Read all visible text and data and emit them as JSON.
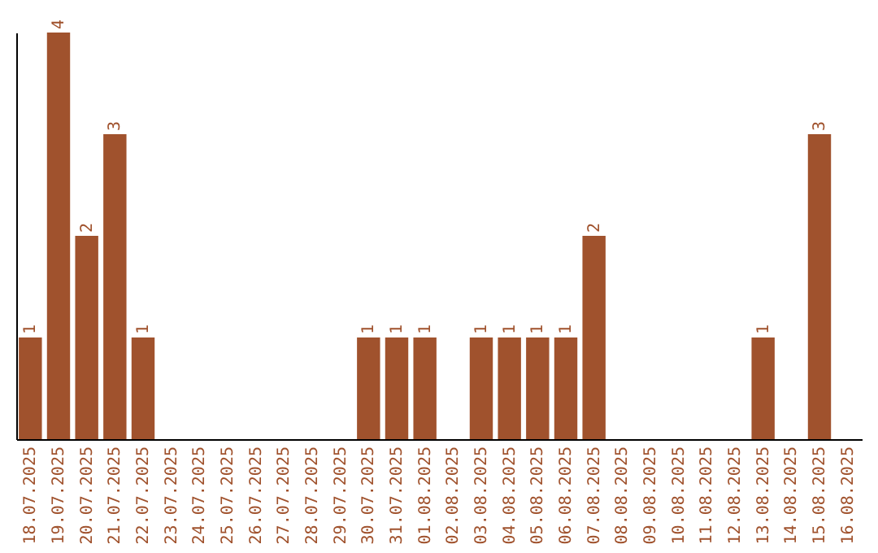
{
  "chart_data": {
    "type": "bar",
    "categories": [
      "18.07.2025",
      "19.07.2025",
      "20.07.2025",
      "21.07.2025",
      "22.07.2025",
      "23.07.2025",
      "24.07.2025",
      "25.07.2025",
      "26.07.2025",
      "27.07.2025",
      "28.07.2025",
      "29.07.2025",
      "30.07.2025",
      "31.07.2025",
      "01.08.2025",
      "02.08.2025",
      "03.08.2025",
      "04.08.2025",
      "05.08.2025",
      "06.08.2025",
      "07.08.2025",
      "08.08.2025",
      "09.08.2025",
      "10.08.2025",
      "11.08.2025",
      "12.08.2025",
      "13.08.2025",
      "14.08.2025",
      "15.08.2025",
      "16.08.2025"
    ],
    "values": [
      1,
      4,
      2,
      3,
      1,
      0,
      0,
      0,
      0,
      0,
      0,
      0,
      1,
      1,
      1,
      0,
      1,
      1,
      1,
      1,
      2,
      0,
      0,
      0,
      0,
      0,
      1,
      0,
      3,
      0
    ],
    "value_labels": [
      "1",
      "4",
      "2",
      "3",
      "1",
      null,
      null,
      null,
      null,
      null,
      null,
      null,
      "1",
      "1",
      "1",
      null,
      "1",
      "1",
      "1",
      "1",
      "2",
      null,
      null,
      null,
      null,
      null,
      "1",
      null,
      "3",
      null
    ],
    "color": "#a0522d",
    "tick_labels": "x"
  }
}
